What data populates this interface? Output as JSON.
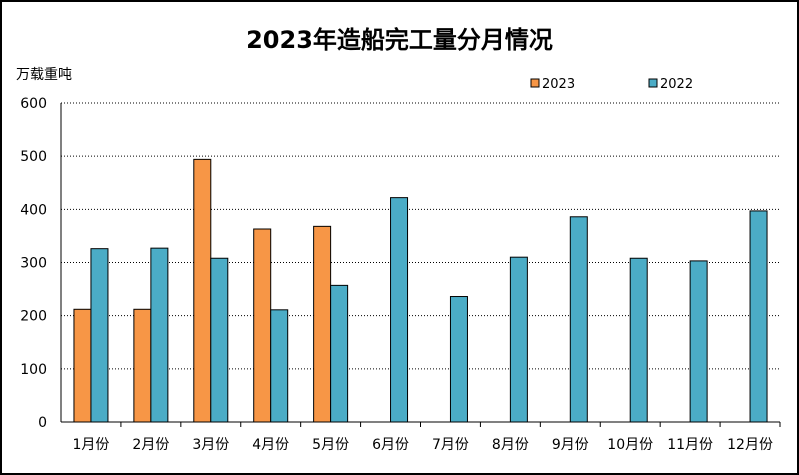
{
  "chart_data": {
    "type": "bar",
    "title": "2023年造船完工量分月情况",
    "ylabel": "万载重吨",
    "xlabel": "",
    "ylim": [
      0,
      600
    ],
    "yticks": [
      0,
      100,
      200,
      300,
      400,
      500,
      600
    ],
    "grid": "horizontal-dotted",
    "legend_position": "top-right",
    "categories": [
      "1月份",
      "2月份",
      "3月份",
      "4月份",
      "5月份",
      "6月份",
      "7月份",
      "8月份",
      "9月份",
      "10月份",
      "11月份",
      "12月份"
    ],
    "series": [
      {
        "name": "2023",
        "color": "#F79646",
        "values": [
          212,
          212,
          494,
          363,
          368,
          null,
          null,
          null,
          null,
          null,
          null,
          null
        ]
      },
      {
        "name": "2022",
        "color": "#4BACC6",
        "values": [
          326,
          327,
          308,
          211,
          257,
          422,
          236,
          310,
          386,
          308,
          303,
          397
        ]
      }
    ]
  }
}
